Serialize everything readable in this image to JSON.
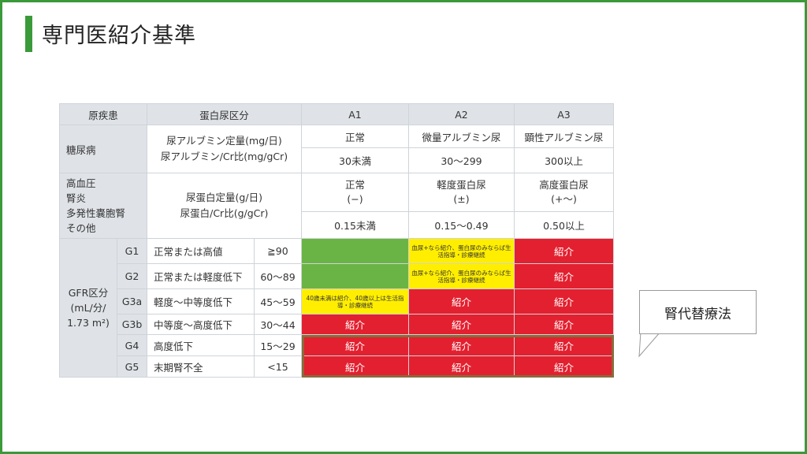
{
  "title": "専門医紹介基準",
  "table": {
    "headers": [
      "原疾患",
      "蛋白尿区分",
      "A1",
      "A2",
      "A3"
    ],
    "diabetes": {
      "label": "糖尿病",
      "measure_1": "尿アルブミン定量(mg/日)",
      "measure_2": "尿アルブミン/Cr比(mg/gCr)",
      "a1_name": "正常",
      "a2_name": "微量アルブミン尿",
      "a3_name": "顕性アルブミン尿",
      "a1_range": "30未満",
      "a2_range": "30〜299",
      "a3_range": "300以上"
    },
    "other": {
      "label_lines": [
        "高血圧",
        "腎炎",
        "多発性嚢胞腎",
        "その他"
      ],
      "measure_1": "尿蛋白定量(g/日)",
      "measure_2": "尿蛋白/Cr比(g/gCr)",
      "a1_name": "正常",
      "a1_sym": "(−)",
      "a2_name": "軽度蛋白尿",
      "a2_sym": "(±)",
      "a3_name": "高度蛋白尿",
      "a3_sym": "(+〜)",
      "a1_range": "0.15未満",
      "a2_range": "0.15〜0.49",
      "a3_range": "0.50以上"
    },
    "gfr_label_1": "GFR区分",
    "gfr_label_2": "(mL/分/",
    "gfr_label_3": "1.73 m²)",
    "gfr_rows": [
      {
        "g": "G1",
        "desc": "正常または高値",
        "range": "≧90"
      },
      {
        "g": "G2",
        "desc": "正常または軽度低下",
        "range": "60〜89"
      },
      {
        "g": "G3a",
        "desc": "軽度〜中等度低下",
        "range": "45〜59"
      },
      {
        "g": "G3b",
        "desc": "中等度〜高度低下",
        "range": "30〜44"
      },
      {
        "g": "G4",
        "desc": "高度低下",
        "range": "15〜29"
      },
      {
        "g": "G5",
        "desc": "末期腎不全",
        "range": "<15"
      }
    ],
    "refer": "紹介",
    "note_a2": "血尿+なら紹介、蛋白尿のみならば生活指導・診療継続",
    "note_g3a": "40歳未満は紹介、40歳以上は生活指導・診療継続",
    "colors": {
      "green": "#6ab445",
      "yellow": "#ffee00",
      "red": "#e3202f"
    }
  },
  "callout": "腎代替療法"
}
